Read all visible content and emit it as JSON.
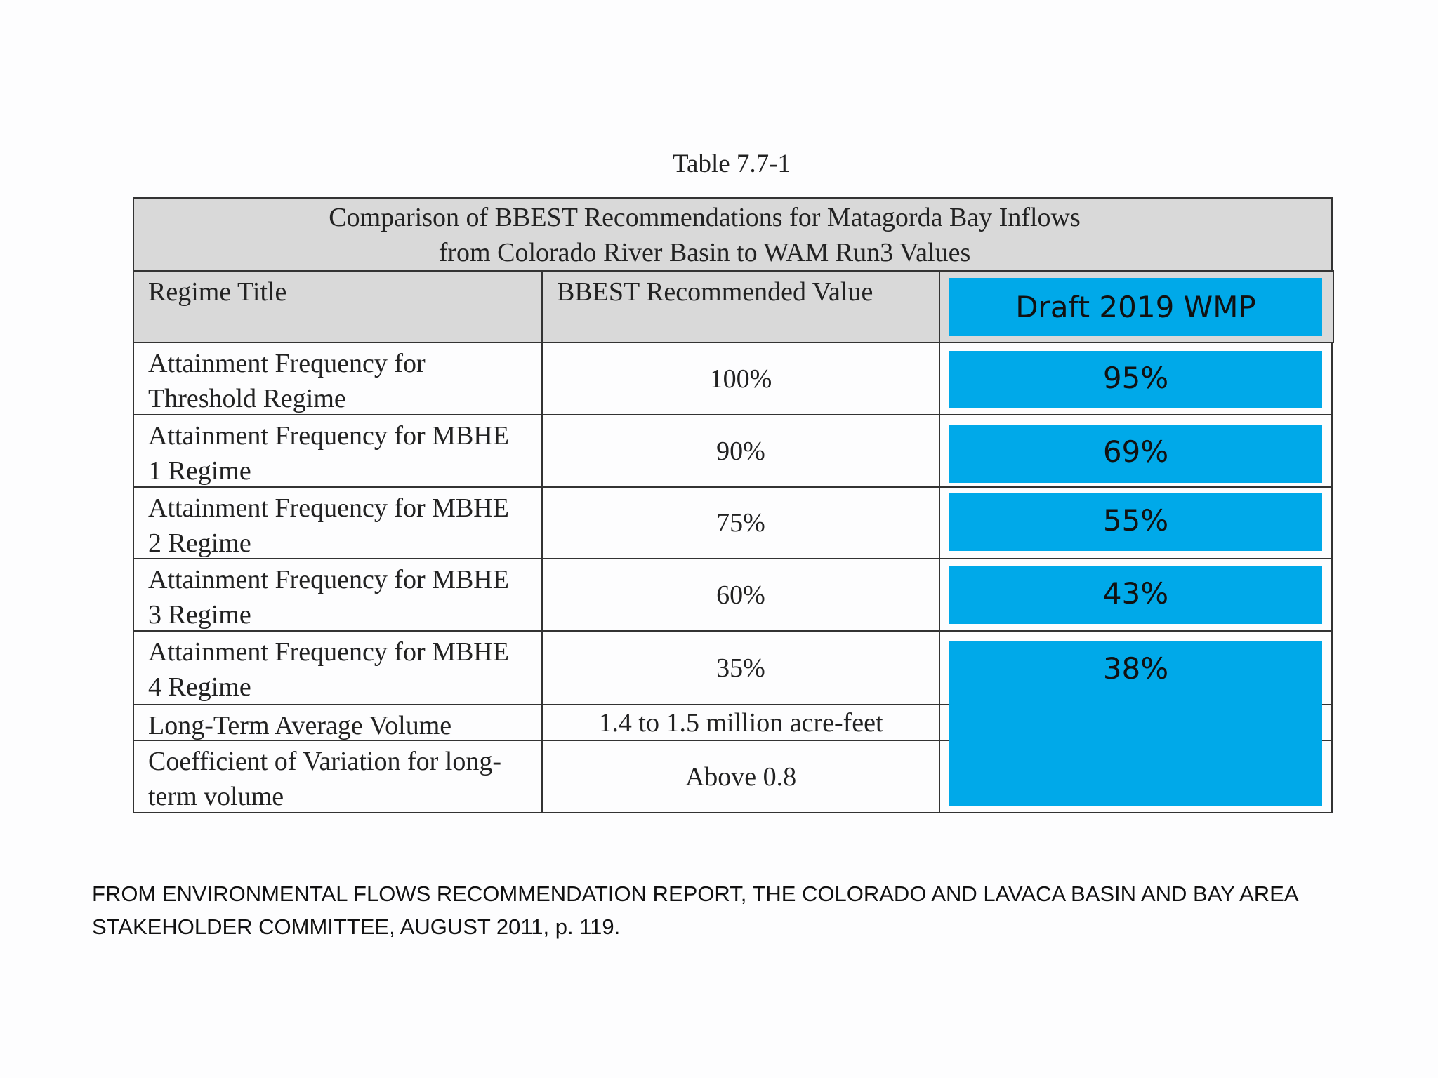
{
  "caption": "Table 7.7-1",
  "table": {
    "title_lines": [
      "Comparison of BBEST Recommendations for Matagorda Bay Inflows",
      "from Colorado River Basin to WAM Run3 Values"
    ],
    "header": [
      "Regime Title",
      "BBEST Recommended Value"
    ],
    "rows": [
      [
        "Attainment Frequency for Threshold Regime",
        "100%"
      ],
      [
        "Attainment Frequency for MBHE 1 Regime",
        "90%"
      ],
      [
        "Attainment Frequency for MBHE 2 Regime",
        "75%"
      ],
      [
        "Attainment Frequency for MBHE 3 Regime",
        "60%"
      ],
      [
        "Attainment Frequency for MBHE 4 Regime",
        "35%"
      ],
      [
        "Long-Term Average Volume",
        "1.4 to 1.5 million acre-feet"
      ],
      [
        "Coefficient of Variation for long-term volume",
        "Above 0.8"
      ]
    ]
  },
  "overlay": {
    "header": "Draft 2019 WMP",
    "values": [
      "95%",
      "69%",
      "55%",
      "43%",
      "38%"
    ]
  },
  "footer": "FROM ENVIRONMENTAL FLOWS RECOMMENDATION REPORT, THE COLORADO AND LAVACA BASIN AND BAY AREA STAKEHOLDER COMMITTEE, AUGUST 2011, p. 119."
}
